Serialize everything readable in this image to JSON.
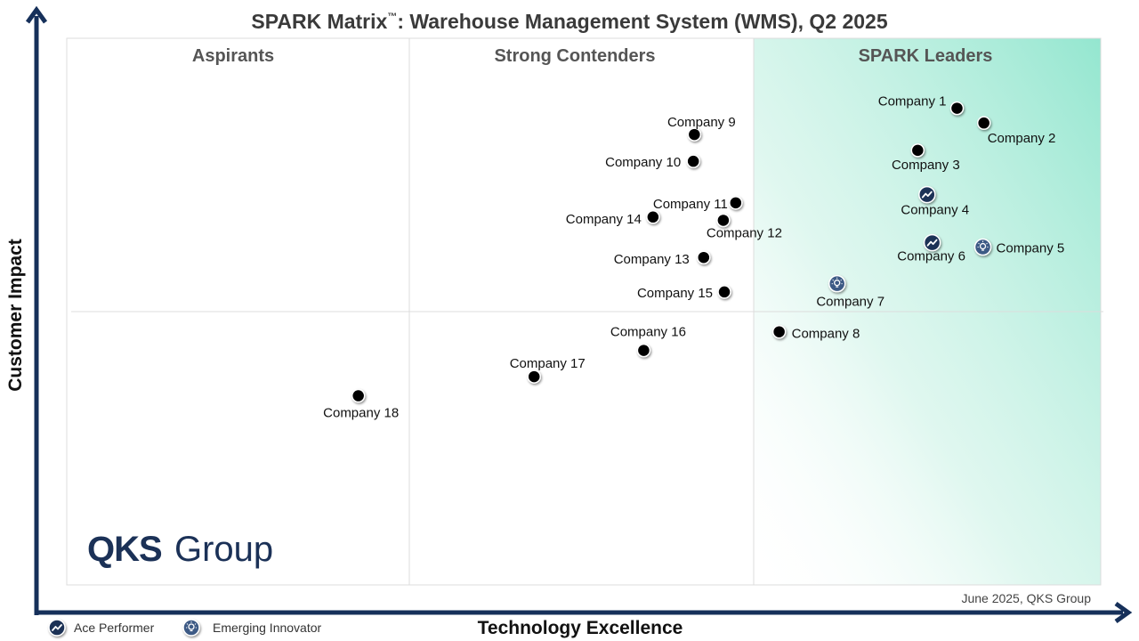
{
  "chart_data": {
    "type": "scatter",
    "title": "SPARK Matrix",
    "title_mark": "™",
    "title_rest": ": Warehouse Management System (WMS), Q2 2025",
    "xlabel": "Technology Excellence",
    "ylabel": "Customer Impact",
    "xlim": [
      0,
      100
    ],
    "ylim": [
      0,
      100
    ],
    "grid": true,
    "quadrants": [
      "Aspirants",
      "Strong Contenders",
      "SPARK Leaders"
    ],
    "points": [
      {
        "label": "Company 1",
        "x": 86.1,
        "y": 87.2,
        "marker": "dot"
      },
      {
        "label": "Company 2",
        "x": 88.7,
        "y": 84.5,
        "marker": "dot"
      },
      {
        "label": "Company 3",
        "x": 82.3,
        "y": 79.5,
        "marker": "dot"
      },
      {
        "label": "Company 4",
        "x": 83.2,
        "y": 71.4,
        "marker": "ace"
      },
      {
        "label": "Company 5",
        "x": 88.6,
        "y": 61.8,
        "marker": "emerging"
      },
      {
        "label": "Company 6",
        "x": 83.7,
        "y": 62.6,
        "marker": "ace"
      },
      {
        "label": "Company 7",
        "x": 74.5,
        "y": 55.1,
        "marker": "emerging"
      },
      {
        "label": "Company 8",
        "x": 68.9,
        "y": 46.3,
        "marker": "dot"
      },
      {
        "label": "Company 9",
        "x": 60.7,
        "y": 82.4,
        "marker": "dot"
      },
      {
        "label": "Company 10",
        "x": 60.6,
        "y": 77.5,
        "marker": "dot"
      },
      {
        "label": "Company 11",
        "x": 64.7,
        "y": 69.9,
        "marker": "dot"
      },
      {
        "label": "Company 12",
        "x": 63.5,
        "y": 66.7,
        "marker": "dot"
      },
      {
        "label": "Company 13",
        "x": 61.6,
        "y": 59.9,
        "marker": "dot"
      },
      {
        "label": "Company 14",
        "x": 56.7,
        "y": 67.3,
        "marker": "dot"
      },
      {
        "label": "Company 15",
        "x": 63.6,
        "y": 53.6,
        "marker": "dot"
      },
      {
        "label": "Company 16",
        "x": 55.8,
        "y": 42.9,
        "marker": "dot"
      },
      {
        "label": "Company 17",
        "x": 45.2,
        "y": 38.1,
        "marker": "dot"
      },
      {
        "label": "Company 18",
        "x": 28.2,
        "y": 34.6,
        "marker": "dot"
      }
    ],
    "legend": [
      {
        "label": "Ace Performer",
        "marker": "ace"
      },
      {
        "label": "Emerging Innovator",
        "marker": "emerging"
      }
    ],
    "note": "June 2025, QKS Group",
    "colors": {
      "dot": "#000000",
      "ace": "#1b3157",
      "emerging": "#3e5a85",
      "leader_gradient": "#8ee5cd",
      "axis": "#16305a"
    }
  },
  "logo": {
    "qks": "QKS",
    "group": "Group"
  }
}
